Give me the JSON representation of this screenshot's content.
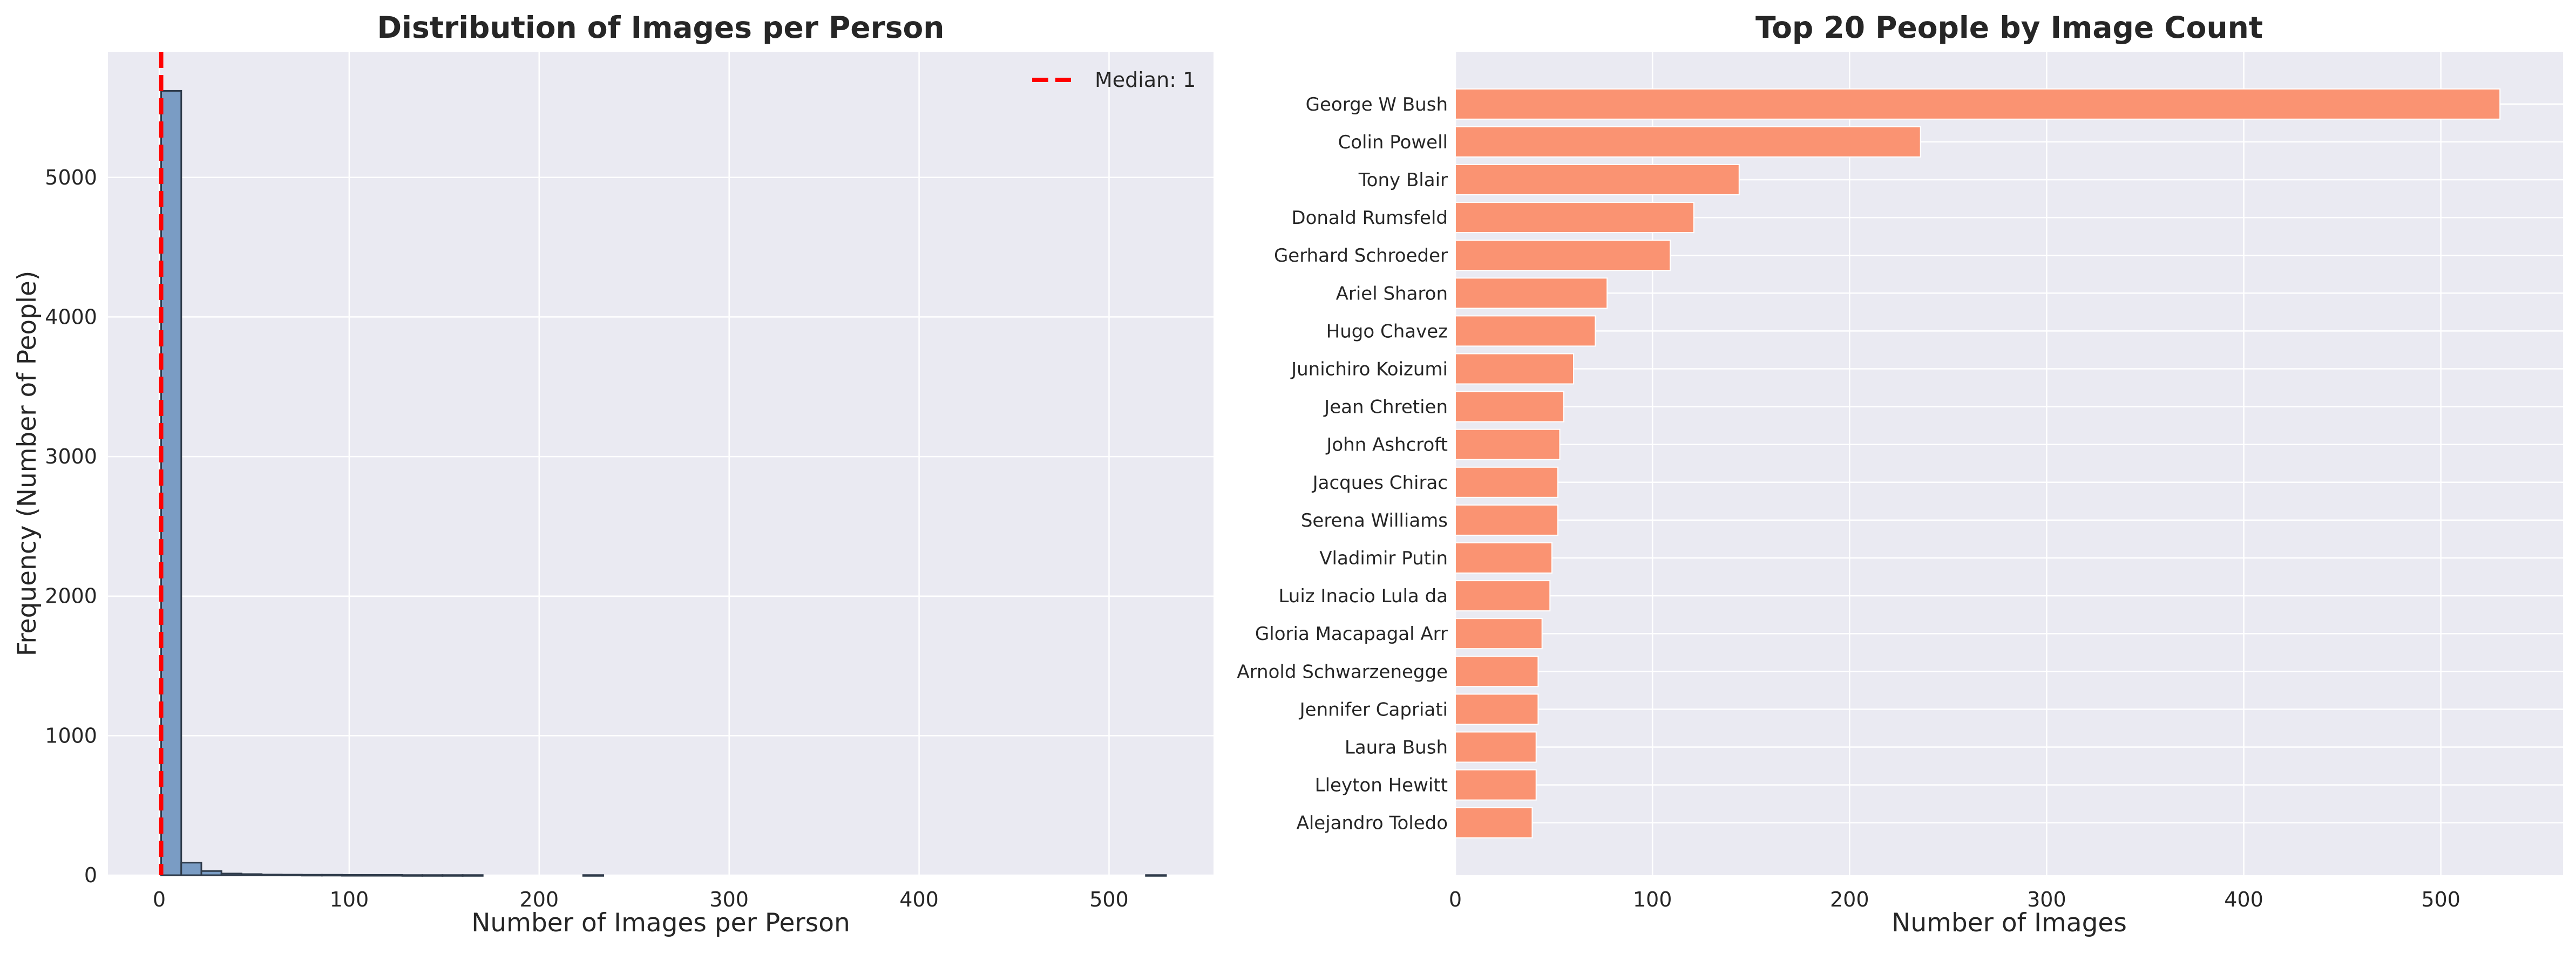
{
  "chart_data": [
    {
      "type": "bar",
      "subtype": "histogram",
      "title": "Distribution of Images per Person",
      "xlabel": "Number of Images per Person",
      "ylabel": "Frequency (Number of People)",
      "xlim": [
        -27,
        555
      ],
      "ylim": [
        0,
        5900
      ],
      "xticks": [
        "0",
        "100",
        "200",
        "300",
        "400",
        "500"
      ],
      "yticks": [
        "0",
        "1000",
        "2000",
        "3000",
        "4000",
        "5000"
      ],
      "bin_width": 10.58,
      "bins_start": 1,
      "counts": [
        5620,
        90,
        30,
        12,
        8,
        5,
        4,
        3,
        3,
        2,
        2,
        2,
        1,
        1,
        1,
        1,
        0,
        0,
        0,
        0,
        0,
        1,
        0,
        0,
        0,
        0,
        0,
        0,
        0,
        0,
        0,
        0,
        0,
        0,
        0,
        0,
        0,
        0,
        0,
        0,
        0,
        0,
        0,
        0,
        0,
        0,
        0,
        0,
        0,
        1
      ],
      "median": 1,
      "legend": [
        {
          "label": "Median: 1",
          "style": "dashed",
          "color": "#ff0000"
        }
      ],
      "legend_position": "top-right",
      "grid": true,
      "colors": {
        "bar": "#7a9cc4",
        "edge": "#2f3b4a",
        "median": "#ff0000",
        "plot_bg": "#eaeaf2"
      }
    },
    {
      "type": "bar",
      "orientation": "horizontal",
      "title": "Top 20 People by Image Count",
      "xlabel": "Number of Images",
      "xlim": [
        0,
        562
      ],
      "xticks": [
        "0",
        "100",
        "200",
        "300",
        "400",
        "500"
      ],
      "categories": [
        "George W Bush",
        "Colin Powell",
        "Tony Blair",
        "Donald Rumsfeld",
        "Gerhard Schroeder",
        "Ariel Sharon",
        "Hugo Chavez",
        "Junichiro Koizumi",
        "Jean Chretien",
        "John Ashcroft",
        "Jacques Chirac",
        "Serena Williams",
        "Vladimir Putin",
        "Luiz Inacio Lula da",
        "Gloria Macapagal Arr",
        "Arnold Schwarzenegge",
        "Jennifer Capriati",
        "Laura Bush",
        "Lleyton Hewitt",
        "Alejandro Toledo"
      ],
      "values": [
        530,
        236,
        144,
        121,
        109,
        77,
        71,
        60,
        55,
        53,
        52,
        52,
        49,
        48,
        44,
        42,
        42,
        41,
        41,
        39
      ],
      "grid": true,
      "colors": {
        "bar": "#fa9372",
        "plot_bg": "#eaeaf2"
      }
    }
  ]
}
